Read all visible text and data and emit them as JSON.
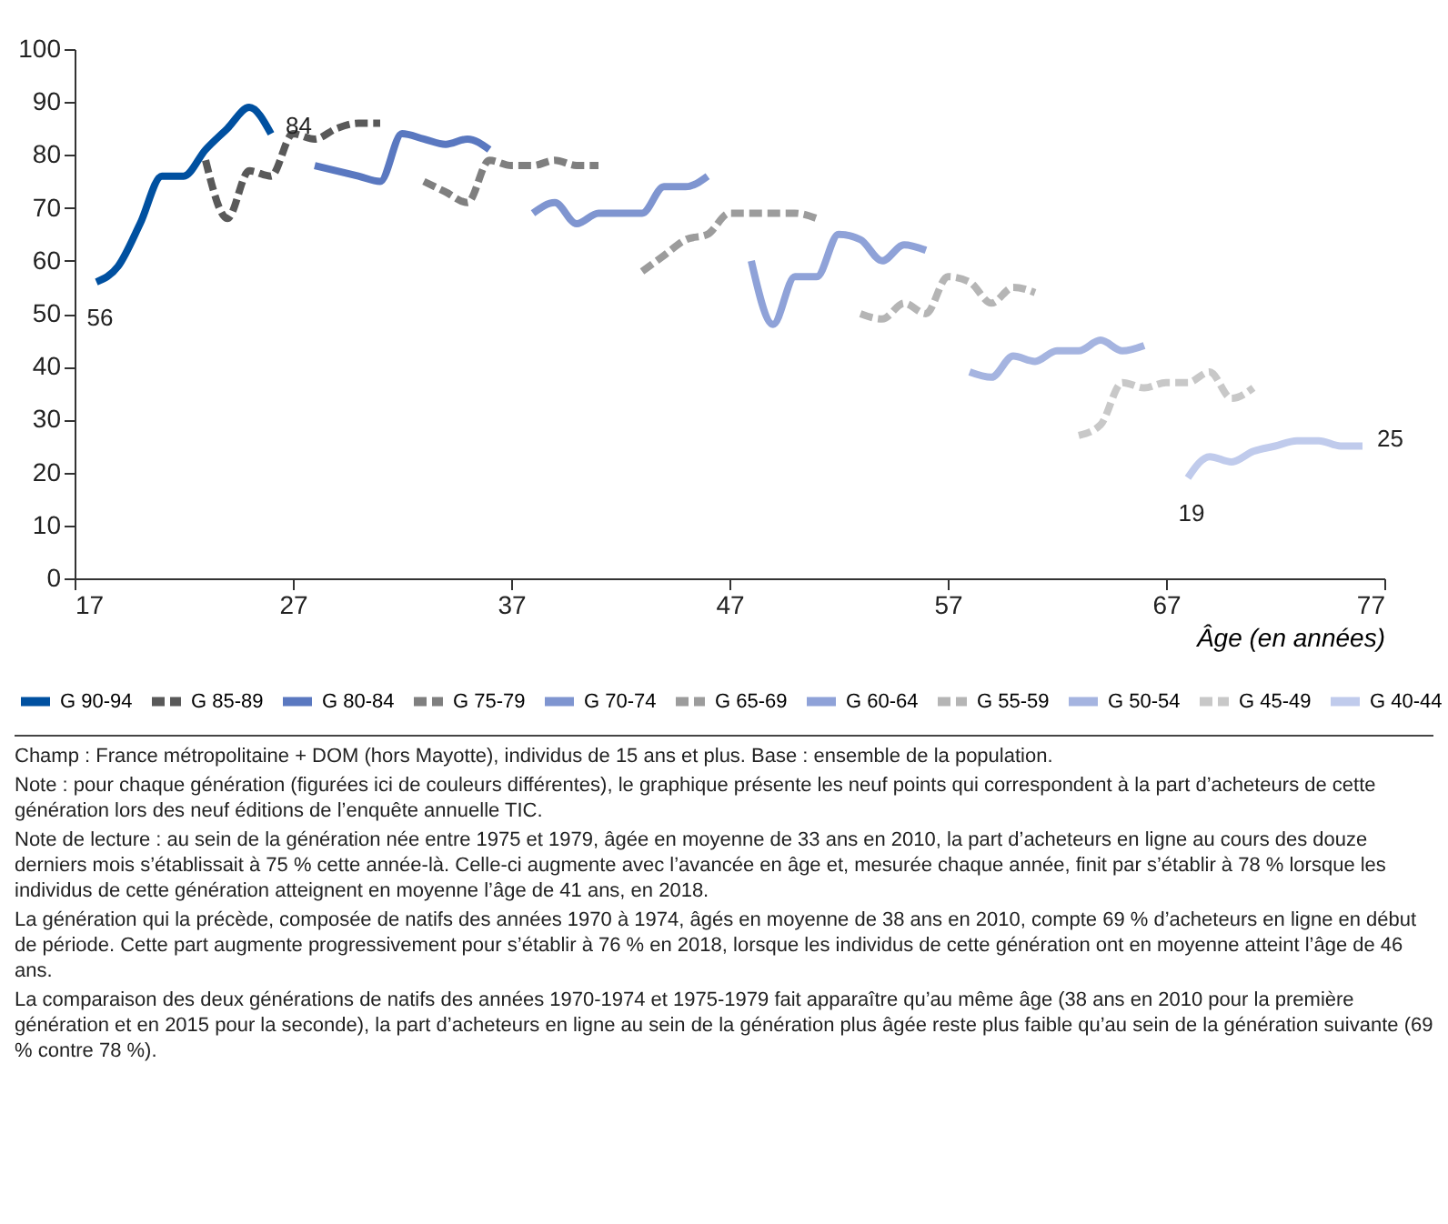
{
  "chart_data": {
    "type": "line",
    "xlabel": "Âge (en années)",
    "xlim": [
      17,
      77
    ],
    "xticks": [
      17,
      27,
      37,
      47,
      57,
      67,
      77
    ],
    "ylim": [
      0,
      100
    ],
    "yticks": [
      0,
      10,
      20,
      30,
      40,
      50,
      60,
      70,
      80,
      90,
      100
    ],
    "legend": "bottom",
    "grid": false,
    "series": [
      {
        "name": "G 90-94",
        "color": "#0050a0",
        "line_style": "solid",
        "x": [
          18,
          19,
          20,
          21,
          22,
          23,
          24,
          25,
          26
        ],
        "values": [
          56,
          59,
          67,
          76,
          76,
          81,
          85,
          89,
          84
        ],
        "value_labels": [
          "56",
          null,
          null,
          null,
          null,
          null,
          null,
          null,
          "84"
        ]
      },
      {
        "name": "G 85-89",
        "color": "#595959",
        "line_style": "dashed",
        "x": [
          23,
          24,
          25,
          26,
          27,
          28,
          29,
          30,
          31
        ],
        "values": [
          79,
          68,
          77,
          76,
          84,
          83,
          85,
          86,
          86
        ]
      },
      {
        "name": "G 80-84",
        "color": "#5a78c0",
        "line_style": "solid",
        "x": [
          28,
          29,
          30,
          31,
          32,
          33,
          34,
          35,
          36
        ],
        "values": [
          78,
          77,
          76,
          75,
          84,
          83,
          82,
          83,
          81
        ]
      },
      {
        "name": "G 75-79",
        "color": "#7f7f7f",
        "line_style": "dashed",
        "x": [
          33,
          34,
          35,
          36,
          37,
          38,
          39,
          40,
          41
        ],
        "values": [
          75,
          73,
          71,
          79,
          78,
          78,
          79,
          78,
          78
        ]
      },
      {
        "name": "G 70-74",
        "color": "#7f95d0",
        "line_style": "solid",
        "x": [
          38,
          39,
          40,
          41,
          42,
          43,
          44,
          45,
          46
        ],
        "values": [
          69,
          71,
          67,
          69,
          69,
          69,
          74,
          74,
          76
        ]
      },
      {
        "name": "G 65-69",
        "color": "#9c9c9c",
        "line_style": "dashed",
        "x": [
          43,
          44,
          45,
          46,
          47,
          48,
          49,
          50,
          51
        ],
        "values": [
          58,
          61,
          64,
          65,
          69,
          69,
          69,
          69,
          68
        ]
      },
      {
        "name": "G 60-64",
        "color": "#8fa2d8",
        "line_style": "solid",
        "x": [
          48,
          49,
          50,
          51,
          52,
          53,
          54,
          55,
          56
        ],
        "values": [
          60,
          48,
          57,
          57,
          65,
          64,
          60,
          63,
          62
        ]
      },
      {
        "name": "G 55-59",
        "color": "#b5b5b5",
        "line_style": "dashed",
        "x": [
          53,
          54,
          55,
          56,
          57,
          58,
          59,
          60,
          61
        ],
        "values": [
          50,
          49,
          52,
          50,
          57,
          56,
          52,
          55,
          54
        ]
      },
      {
        "name": "G 50-54",
        "color": "#a5b4e0",
        "line_style": "solid",
        "x": [
          58,
          59,
          60,
          61,
          62,
          63,
          64,
          65,
          66
        ],
        "values": [
          39,
          38,
          42,
          41,
          43,
          43,
          45,
          43,
          44
        ]
      },
      {
        "name": "G 45-49",
        "color": "#c8c8c8",
        "line_style": "dashed",
        "x": [
          63,
          64,
          65,
          66,
          67,
          68,
          69,
          70,
          71
        ],
        "values": [
          27,
          29,
          37,
          36,
          37,
          37,
          39,
          34,
          36
        ]
      },
      {
        "name": "G 40-44",
        "color": "#c0cbec",
        "line_style": "solid",
        "x": [
          68,
          69,
          70,
          71,
          72,
          73,
          74,
          75,
          76
        ],
        "values": [
          19,
          23,
          22,
          24,
          25,
          26,
          26,
          25,
          25
        ],
        "value_labels": [
          "19",
          null,
          null,
          null,
          null,
          null,
          null,
          null,
          "25"
        ]
      }
    ],
    "annotations": [
      "Champ : France métropolitaine + DOM (hors Mayotte), individus de 15 ans et plus. Base : ensemble de la population.",
      "Note : pour chaque génération (figurées ici de couleurs différentes), le graphique présente les neuf points qui correspondent à la part d’acheteurs de cette génération lors des neuf éditions de l’enquête annuelle TIC.",
      "Note de lecture : au sein de la génération née entre 1975 et 1979, âgée en moyenne de 33 ans en 2010, la part d’acheteurs en ligne au cours des douze derniers mois s’établissait à 75 % cette année-là. Celle-ci augmente avec l’avancée en âge et, mesurée chaque année, finit par s’établir à 78 % lorsque les individus de cette génération atteignent en moyenne l’âge de 41 ans, en 2018.",
      "La génération qui la précède, composée de natifs des années 1970 à 1974, âgés en moyenne de 38 ans en 2010, compte 69 % d’acheteurs en ligne en début de période. Cette part augmente progressivement pour s’établir à 76 % en 2018, lorsque les individus de cette génération ont en moyenne atteint l’âge de 46 ans.",
      "La comparaison des deux générations de natifs des années 1970-1974 et 1975-1979 fait apparaître qu’au même âge (38 ans en 2010 pour la première génération et en 2015 pour la seconde), la part d’acheteurs en ligne au sein de la génération plus âgée reste plus faible qu’au sein de la génération suivante (69 % contre 78 %)."
    ]
  }
}
